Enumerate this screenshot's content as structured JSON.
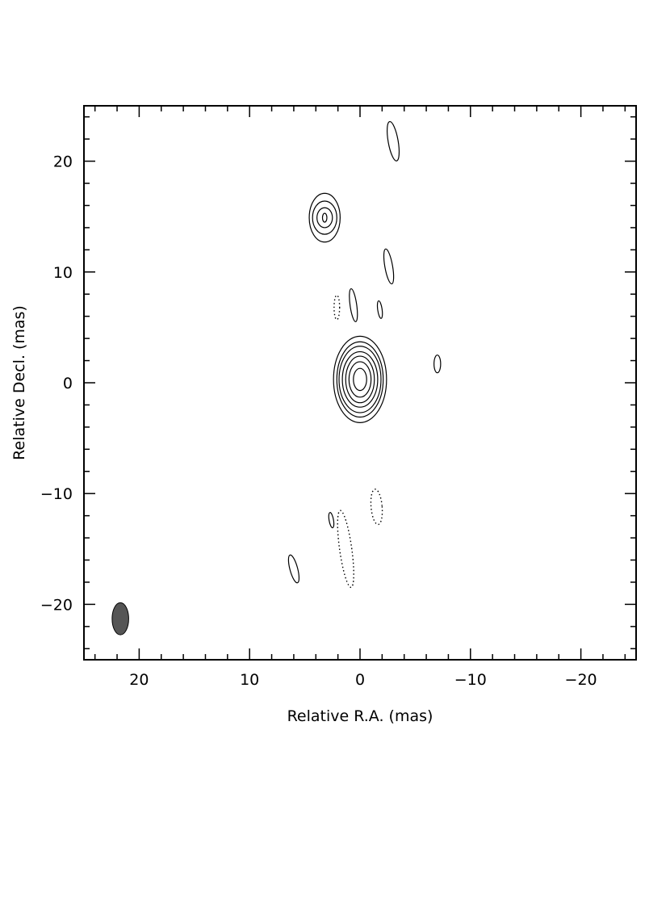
{
  "chart_data": {
    "type": "contour",
    "xlabel": "Relative R.A. (mas)",
    "ylabel": "Relative Decl. (mas)",
    "xlim": [
      25,
      -25
    ],
    "ylim": [
      -25,
      25
    ],
    "x_ticks": [
      20,
      10,
      0,
      -10,
      -20
    ],
    "y_ticks": [
      20,
      10,
      0,
      -10,
      -20
    ],
    "x_tick_labels": [
      "20",
      "10",
      "0",
      "−10",
      "−20"
    ],
    "y_tick_labels": [
      "20",
      "10",
      "0",
      "−10",
      "−20"
    ],
    "grid": false,
    "components": [
      {
        "name": "core",
        "x": 0.0,
        "y": 0.3,
        "style": "solid",
        "levels": [
          {
            "rx": 0.6,
            "ry": 1.0
          },
          {
            "rx": 1.0,
            "ry": 1.6
          },
          {
            "rx": 1.3,
            "ry": 2.1
          },
          {
            "rx": 1.6,
            "ry": 2.5
          },
          {
            "rx": 1.9,
            "ry": 3.0
          },
          {
            "rx": 2.1,
            "ry": 3.4
          },
          {
            "rx": 2.4,
            "ry": 3.9
          }
        ]
      },
      {
        "name": "north-component",
        "x": 3.2,
        "y": 14.9,
        "style": "solid",
        "levels": [
          {
            "rx": 0.2,
            "ry": 0.4
          },
          {
            "rx": 0.7,
            "ry": 0.9
          },
          {
            "rx": 1.1,
            "ry": 1.5
          },
          {
            "rx": 1.4,
            "ry": 2.2
          }
        ]
      },
      {
        "name": "blob-top",
        "x": -3.0,
        "y": 21.8,
        "rx": 0.45,
        "ry": 1.8,
        "rot": -10,
        "style": "solid"
      },
      {
        "name": "blob-mid-right",
        "x": -2.6,
        "y": 10.5,
        "rx": 0.35,
        "ry": 1.6,
        "rot": -10,
        "style": "solid"
      },
      {
        "name": "blob-small-left",
        "x": 0.6,
        "y": 7.0,
        "rx": 0.3,
        "ry": 1.5,
        "rot": -8,
        "style": "solid"
      },
      {
        "name": "blob-small-right",
        "x": -1.8,
        "y": 6.6,
        "rx": 0.2,
        "ry": 0.8,
        "rot": -8,
        "style": "solid"
      },
      {
        "name": "blob-east",
        "x": -7.0,
        "y": 1.7,
        "rx": 0.3,
        "ry": 0.8,
        "rot": 0,
        "style": "solid"
      },
      {
        "name": "blob-south-small",
        "x": 2.6,
        "y": -12.4,
        "rx": 0.2,
        "ry": 0.7,
        "rot": -10,
        "style": "solid"
      },
      {
        "name": "blob-south-left",
        "x": 6.0,
        "y": -16.8,
        "rx": 0.35,
        "ry": 1.3,
        "rot": -15,
        "style": "solid"
      },
      {
        "name": "neg-1",
        "x": 2.1,
        "y": 6.8,
        "rx": 0.25,
        "ry": 1.1,
        "rot": 0,
        "style": "dotted"
      },
      {
        "name": "neg-2",
        "x": -1.5,
        "y": -11.2,
        "rx": 0.5,
        "ry": 1.6,
        "rot": -5,
        "style": "dotted"
      },
      {
        "name": "neg-3",
        "x": 1.3,
        "y": -15.0,
        "rx": 0.55,
        "ry": 3.5,
        "rot": -8,
        "style": "dotted"
      }
    ],
    "beam": {
      "x": 21.7,
      "y": -21.3,
      "rx": 0.75,
      "ry": 1.45,
      "fill": "#555555"
    }
  }
}
